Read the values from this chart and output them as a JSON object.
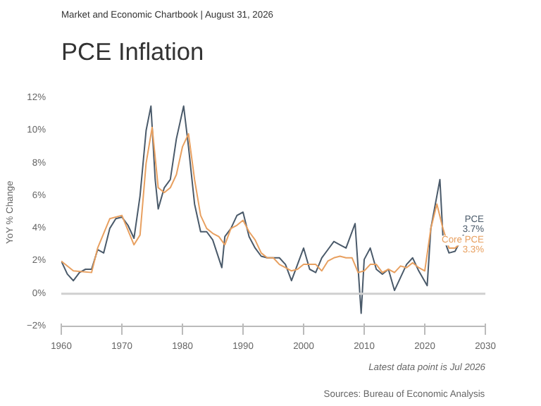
{
  "chart_data": {
    "type": "line",
    "subtitle": "Market and Economic Chartbook | August 31, 2026",
    "title": "PCE Inflation",
    "ylabel": "YoY % Change",
    "xlim": [
      1960,
      2030
    ],
    "xticks": [
      1960,
      1970,
      1980,
      1990,
      2000,
      2010,
      2020,
      2030
    ],
    "ylim": [
      -2,
      12
    ],
    "yticks": [
      {
        "value": -2,
        "label": "−2%"
      },
      {
        "value": 0,
        "label": "0%"
      },
      {
        "value": 2,
        "label": "2%"
      },
      {
        "value": 4,
        "label": "4%"
      },
      {
        "value": 6,
        "label": "6%"
      },
      {
        "value": 8,
        "label": "8%"
      },
      {
        "value": 10,
        "label": "10%"
      },
      {
        "value": 12,
        "label": "12%"
      }
    ],
    "grid": false,
    "ref_lines": [
      {
        "axis": "y",
        "value": 0,
        "color": "#d0d0d0"
      }
    ],
    "series": [
      {
        "name": "PCE",
        "color": "#4a5a6a",
        "x": [
          1960,
          1961,
          1962,
          1963,
          1964,
          1965,
          1966,
          1967,
          1968,
          1969,
          1970,
          1971,
          1972,
          1973,
          1974,
          1974.8,
          1975.5,
          1976,
          1977,
          1978,
          1979,
          1980.2,
          1981,
          1982,
          1983,
          1984,
          1985,
          1986.5,
          1987,
          1988,
          1989,
          1990,
          1991,
          1992,
          1993,
          1994,
          1995,
          1996,
          1997,
          1998,
          1999,
          2000,
          2001,
          2002,
          2003,
          2004,
          2005,
          2006,
          2007,
          2008.5,
          2009.5,
          2010,
          2011,
          2012,
          2013,
          2014,
          2015,
          2016,
          2017,
          2018,
          2019,
          2020.4,
          2021,
          2022.5,
          2023,
          2024,
          2025,
          2026.5
        ],
        "values": [
          2.0,
          1.2,
          0.8,
          1.3,
          1.5,
          1.5,
          2.7,
          2.5,
          4.0,
          4.6,
          4.7,
          4.2,
          3.4,
          6.0,
          10.0,
          11.5,
          7.0,
          5.2,
          6.5,
          7.0,
          9.5,
          11.5,
          9.0,
          5.5,
          3.8,
          3.8,
          3.3,
          1.6,
          3.5,
          4.0,
          4.8,
          5.0,
          3.5,
          2.8,
          2.3,
          2.2,
          2.2,
          2.2,
          1.8,
          0.8,
          1.8,
          2.8,
          1.5,
          1.3,
          2.2,
          2.7,
          3.2,
          3.0,
          2.8,
          4.3,
          -1.2,
          2.1,
          2.8,
          1.5,
          1.2,
          1.5,
          0.2,
          1.0,
          1.8,
          2.2,
          1.4,
          0.5,
          4.0,
          7.0,
          3.5,
          2.5,
          2.6,
          3.7
        ]
      },
      {
        "name": "Core PCE",
        "color": "#e8a060",
        "x": [
          1960,
          1962,
          1965,
          1966,
          1968,
          1970,
          1972,
          1973,
          1974,
          1975,
          1976,
          1977,
          1978,
          1979,
          1980,
          1981,
          1982,
          1983,
          1984,
          1985,
          1986,
          1987,
          1988,
          1989,
          1990,
          1991,
          1992,
          1993,
          1994,
          1995,
          1996,
          1997,
          1998,
          1999,
          2000,
          2001,
          2002,
          2003,
          2004,
          2005,
          2006,
          2007,
          2008,
          2009,
          2010,
          2011,
          2012,
          2013,
          2014,
          2015,
          2016,
          2017,
          2018,
          2019,
          2020,
          2021,
          2022,
          2023,
          2024,
          2025,
          2026.5
        ],
        "values": [
          2.0,
          1.4,
          1.3,
          2.8,
          4.6,
          4.8,
          3.0,
          3.6,
          8.0,
          10.2,
          6.5,
          6.2,
          6.5,
          7.3,
          9.0,
          9.8,
          7.0,
          4.8,
          4.0,
          3.7,
          3.5,
          3.0,
          4.0,
          4.2,
          4.5,
          3.8,
          3.3,
          2.5,
          2.2,
          2.2,
          1.8,
          1.6,
          1.4,
          1.5,
          1.8,
          1.8,
          1.8,
          1.4,
          2.0,
          2.2,
          2.3,
          2.2,
          2.2,
          1.3,
          1.4,
          1.8,
          1.8,
          1.3,
          1.5,
          1.3,
          1.7,
          1.6,
          1.9,
          1.6,
          1.4,
          4.0,
          5.5,
          4.0,
          2.8,
          2.8,
          3.3
        ]
      }
    ],
    "annotations": [
      "3.7%",
      "3.3%",
      "Latest data point is Jul 2026",
      "Sources: Bureau of Economic Analysis"
    ]
  }
}
